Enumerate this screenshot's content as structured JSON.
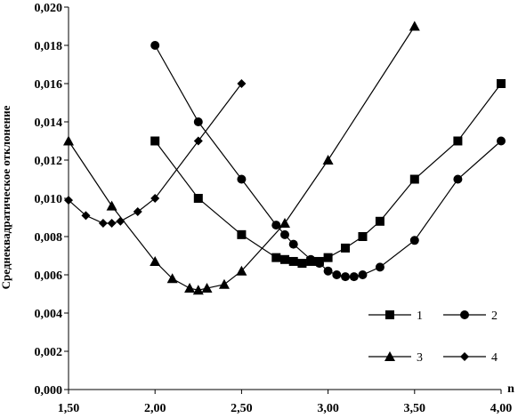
{
  "chart_data": {
    "type": "line",
    "xlabel": "n",
    "ylabel": "Среднеквадратическое отклонение",
    "xlim": [
      1.5,
      4.0
    ],
    "ylim": [
      0.0,
      0.02
    ],
    "x_ticks": [
      "1,50",
      "2,00",
      "2,50",
      "3,00",
      "3,50",
      "4,00"
    ],
    "y_ticks": [
      "0,000",
      "0,002",
      "0,004",
      "0,006",
      "0,008",
      "0,010",
      "0,012",
      "0,014",
      "0,016",
      "0,018",
      "0,020"
    ],
    "grid": false,
    "legend_position": "bottom-right",
    "series": [
      {
        "name": "1",
        "marker": "square",
        "x": [
          2.0,
          2.25,
          2.5,
          2.7,
          2.75,
          2.8,
          2.85,
          2.9,
          2.95,
          3.0,
          3.1,
          3.2,
          3.3,
          3.5,
          3.75,
          4.0
        ],
        "y": [
          0.013,
          0.01,
          0.0081,
          0.0069,
          0.0068,
          0.0067,
          0.0066,
          0.0067,
          0.0067,
          0.0069,
          0.0074,
          0.008,
          0.0088,
          0.011,
          0.013,
          0.016
        ]
      },
      {
        "name": "2",
        "marker": "circle",
        "x": [
          2.0,
          2.25,
          2.5,
          2.7,
          2.75,
          2.8,
          2.9,
          2.95,
          3.0,
          3.05,
          3.1,
          3.15,
          3.2,
          3.3,
          3.5,
          3.75,
          4.0
        ],
        "y": [
          0.018,
          0.014,
          0.011,
          0.0086,
          0.0081,
          0.0076,
          0.0068,
          0.0066,
          0.0062,
          0.006,
          0.0059,
          0.0059,
          0.006,
          0.0064,
          0.0078,
          0.011,
          0.013
        ]
      },
      {
        "name": "3",
        "marker": "triangle",
        "x": [
          1.5,
          1.75,
          2.0,
          2.1,
          2.2,
          2.25,
          2.3,
          2.4,
          2.5,
          2.75,
          3.0,
          3.5
        ],
        "y": [
          0.013,
          0.0096,
          0.0067,
          0.0058,
          0.0053,
          0.0052,
          0.0053,
          0.0055,
          0.0062,
          0.0087,
          0.012,
          0.019
        ]
      },
      {
        "name": "4",
        "marker": "diamond",
        "x": [
          1.5,
          1.6,
          1.7,
          1.75,
          1.8,
          1.9,
          2.0,
          2.25,
          2.5
        ],
        "y": [
          0.0099,
          0.0091,
          0.0087,
          0.0087,
          0.0088,
          0.0093,
          0.01,
          0.013,
          0.016
        ]
      }
    ]
  }
}
